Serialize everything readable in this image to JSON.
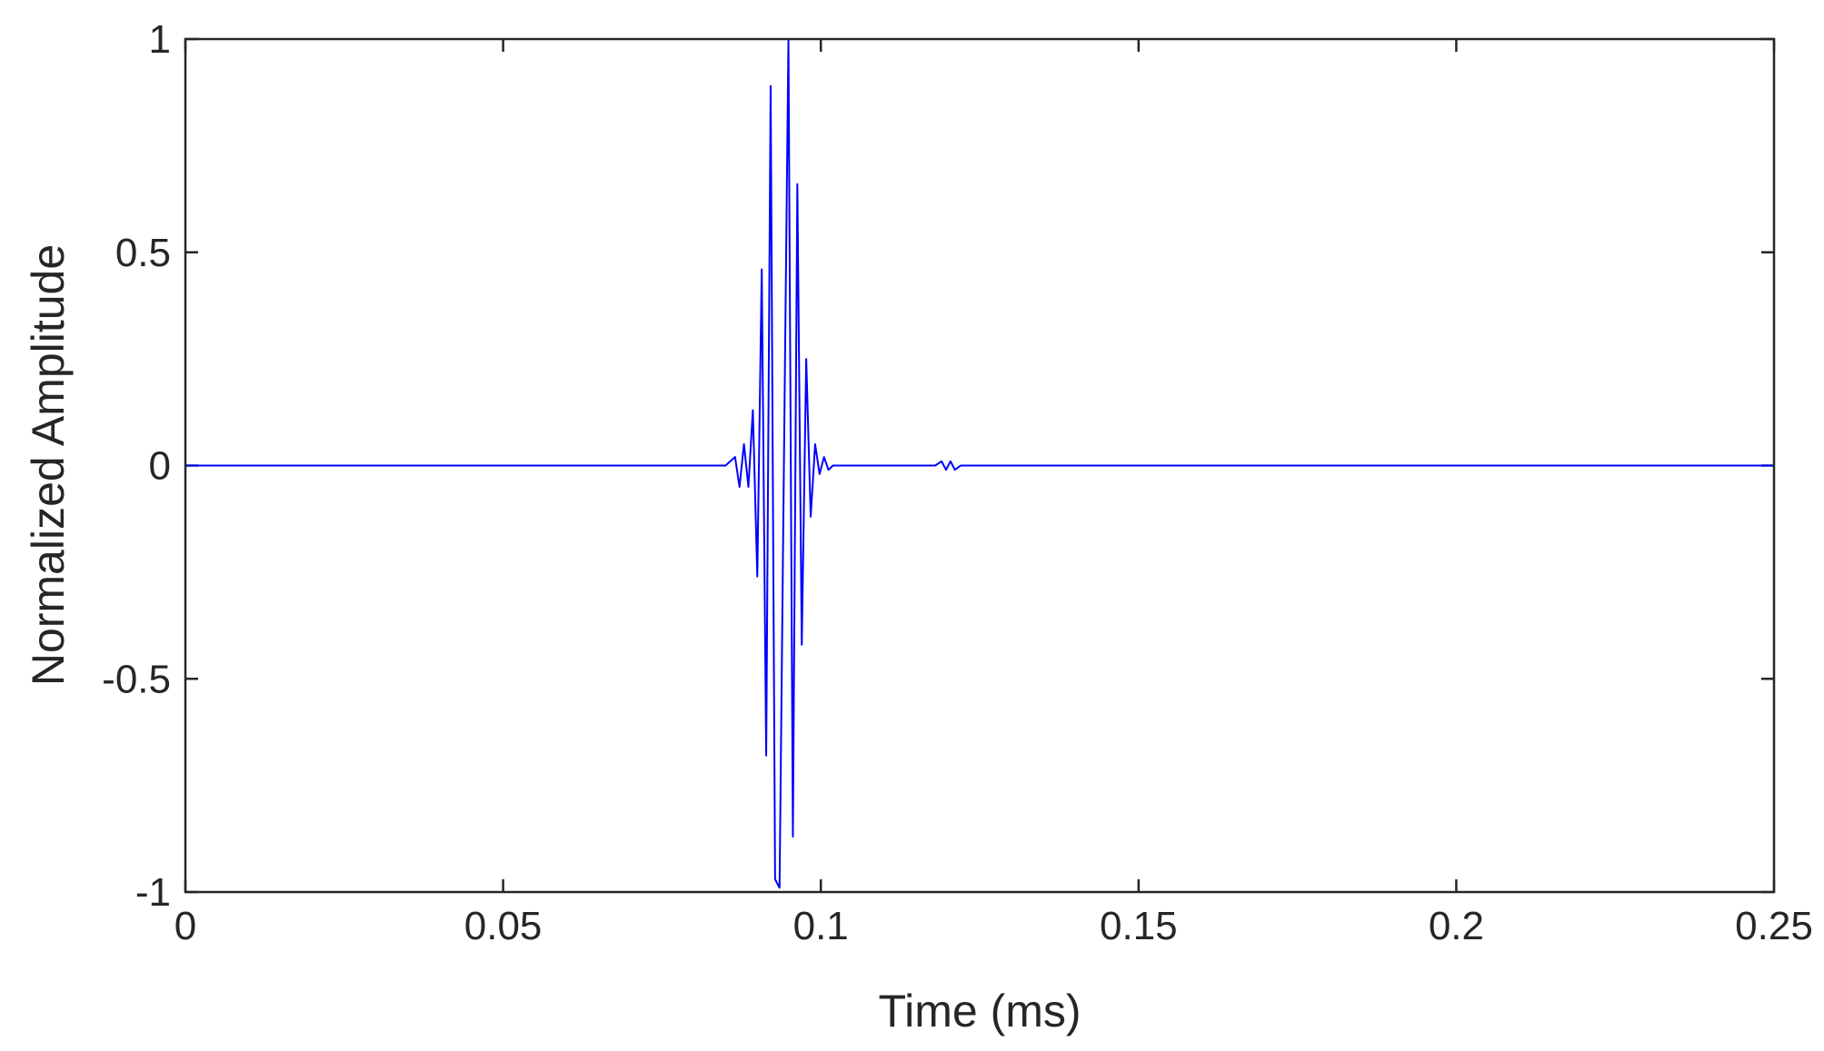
{
  "chart_data": {
    "type": "line",
    "xlabel": "Time (ms)",
    "ylabel": "Normalized Amplitude",
    "xlim": [
      0,
      0.25
    ],
    "ylim": [
      -1,
      1
    ],
    "x_ticks": [
      0,
      0.05,
      0.1,
      0.15,
      0.2,
      0.25
    ],
    "x_tick_labels": [
      "0",
      "0.05",
      "0.1",
      "0.15",
      "0.2",
      "0.25"
    ],
    "y_ticks": [
      -1,
      -0.5,
      0,
      0.5,
      1
    ],
    "y_tick_labels": [
      "-1",
      "-0.5",
      "0",
      "0.5",
      "1"
    ],
    "grid": false,
    "line_color": "#0000ff",
    "series": [
      {
        "x": [
          0,
          0.02,
          0.04,
          0.06,
          0.08,
          0.085,
          0.0865,
          0.0872,
          0.0879,
          0.0886,
          0.0893,
          0.09,
          0.0907,
          0.0914,
          0.0921,
          0.0928,
          0.0935,
          0.0942,
          0.0949,
          0.0956,
          0.0963,
          0.097,
          0.0977,
          0.0984,
          0.0991,
          0.0998,
          0.1005,
          0.1012,
          0.1019,
          0.1026,
          0.1033,
          0.104,
          0.1047,
          0.1054,
          0.1061,
          0.107,
          0.109,
          0.111,
          0.115,
          0.118,
          0.119,
          0.1197,
          0.1204,
          0.1211,
          0.122,
          0.13,
          0.15,
          0.17,
          0.19,
          0.21,
          0.23,
          0.25
        ],
        "y": [
          0,
          0,
          0,
          0,
          0,
          0.0,
          0.02,
          -0.05,
          0.05,
          -0.05,
          0.13,
          -0.26,
          0.46,
          -0.68,
          0.89,
          -0.97,
          -0.99,
          0.02,
          1.0,
          -0.87,
          0.66,
          -0.42,
          0.25,
          -0.12,
          0.05,
          -0.02,
          0.02,
          -0.01,
          0.0,
          0.0,
          0.0,
          0.0,
          0.0,
          0.0,
          0.0,
          0.0,
          0.0,
          0.0,
          0.0,
          0.0,
          0.01,
          -0.01,
          0.01,
          -0.01,
          0.0,
          0.0,
          0.0,
          0.0,
          0.0,
          0.0,
          0.0,
          0.0
        ]
      }
    ]
  }
}
